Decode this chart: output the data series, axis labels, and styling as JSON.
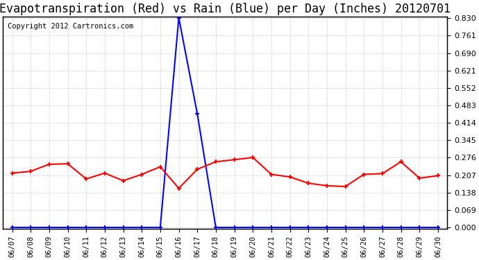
{
  "title": "Evapotranspiration (Red) vs Rain (Blue) per Day (Inches) 20120701",
  "copyright": "Copyright 2012 Cartronics.com",
  "dates": [
    "06/07",
    "06/08",
    "06/09",
    "06/10",
    "06/11",
    "06/12",
    "06/13",
    "06/14",
    "06/15",
    "06/16",
    "06/17",
    "06/18",
    "06/19",
    "06/20",
    "06/21",
    "06/22",
    "06/23",
    "06/24",
    "06/25",
    "06/26",
    "06/27",
    "06/28",
    "06/29",
    "06/30"
  ],
  "et_values": [
    0.215,
    0.222,
    0.25,
    0.252,
    0.192,
    0.215,
    0.185,
    0.21,
    0.24,
    0.155,
    0.23,
    0.26,
    0.268,
    0.277,
    0.21,
    0.2,
    0.175,
    0.165,
    0.162,
    0.21,
    0.213,
    0.26,
    0.195,
    0.205
  ],
  "rain_values": [
    0.0,
    0.0,
    0.0,
    0.0,
    0.0,
    0.0,
    0.0,
    0.0,
    0.0,
    0.83,
    0.45,
    0.0,
    0.0,
    0.0,
    0.0,
    0.0,
    0.0,
    0.0,
    0.0,
    0.0,
    0.0,
    0.0,
    0.0,
    0.0
  ],
  "et_color": "red",
  "rain_color": "blue",
  "bg_color": "#ffffff",
  "grid_color": "#cccccc",
  "ylim_min": 0.0,
  "ylim_max": 0.83,
  "yticks": [
    0.0,
    0.069,
    0.138,
    0.207,
    0.276,
    0.345,
    0.414,
    0.483,
    0.552,
    0.621,
    0.69,
    0.761,
    0.83
  ],
  "title_fontsize": 12,
  "copyright_fontsize": 7.5
}
